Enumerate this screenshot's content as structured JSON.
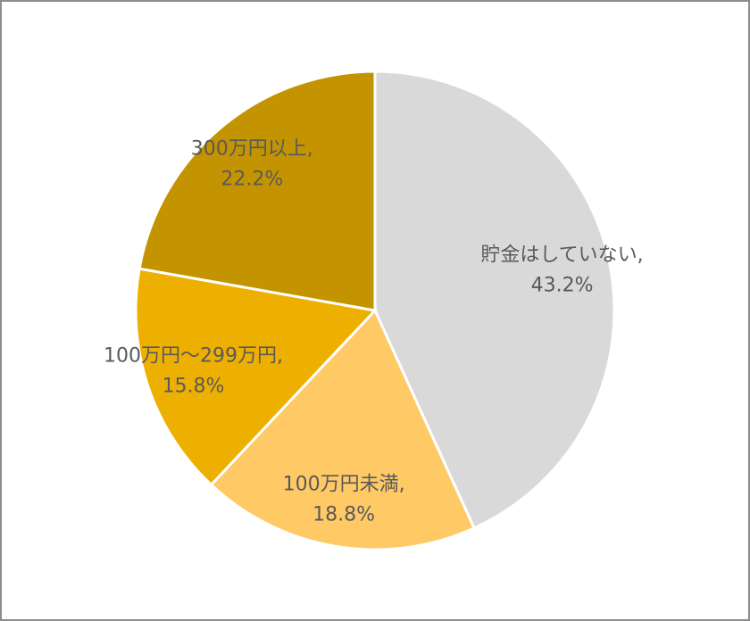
{
  "chart_data": {
    "type": "pie",
    "categories": [
      "貯金はしていない,",
      "100万円未満,",
      "100万円～299万円,",
      "300万円以上,"
    ],
    "values": [
      43.2,
      18.8,
      15.8,
      22.2
    ],
    "value_labels": [
      "43.2%",
      "18.8%",
      "15.8%",
      "22.2%"
    ],
    "colors": [
      "#d9d9d9",
      "#ffc966",
      "#eeb000",
      "#c49400"
    ]
  }
}
